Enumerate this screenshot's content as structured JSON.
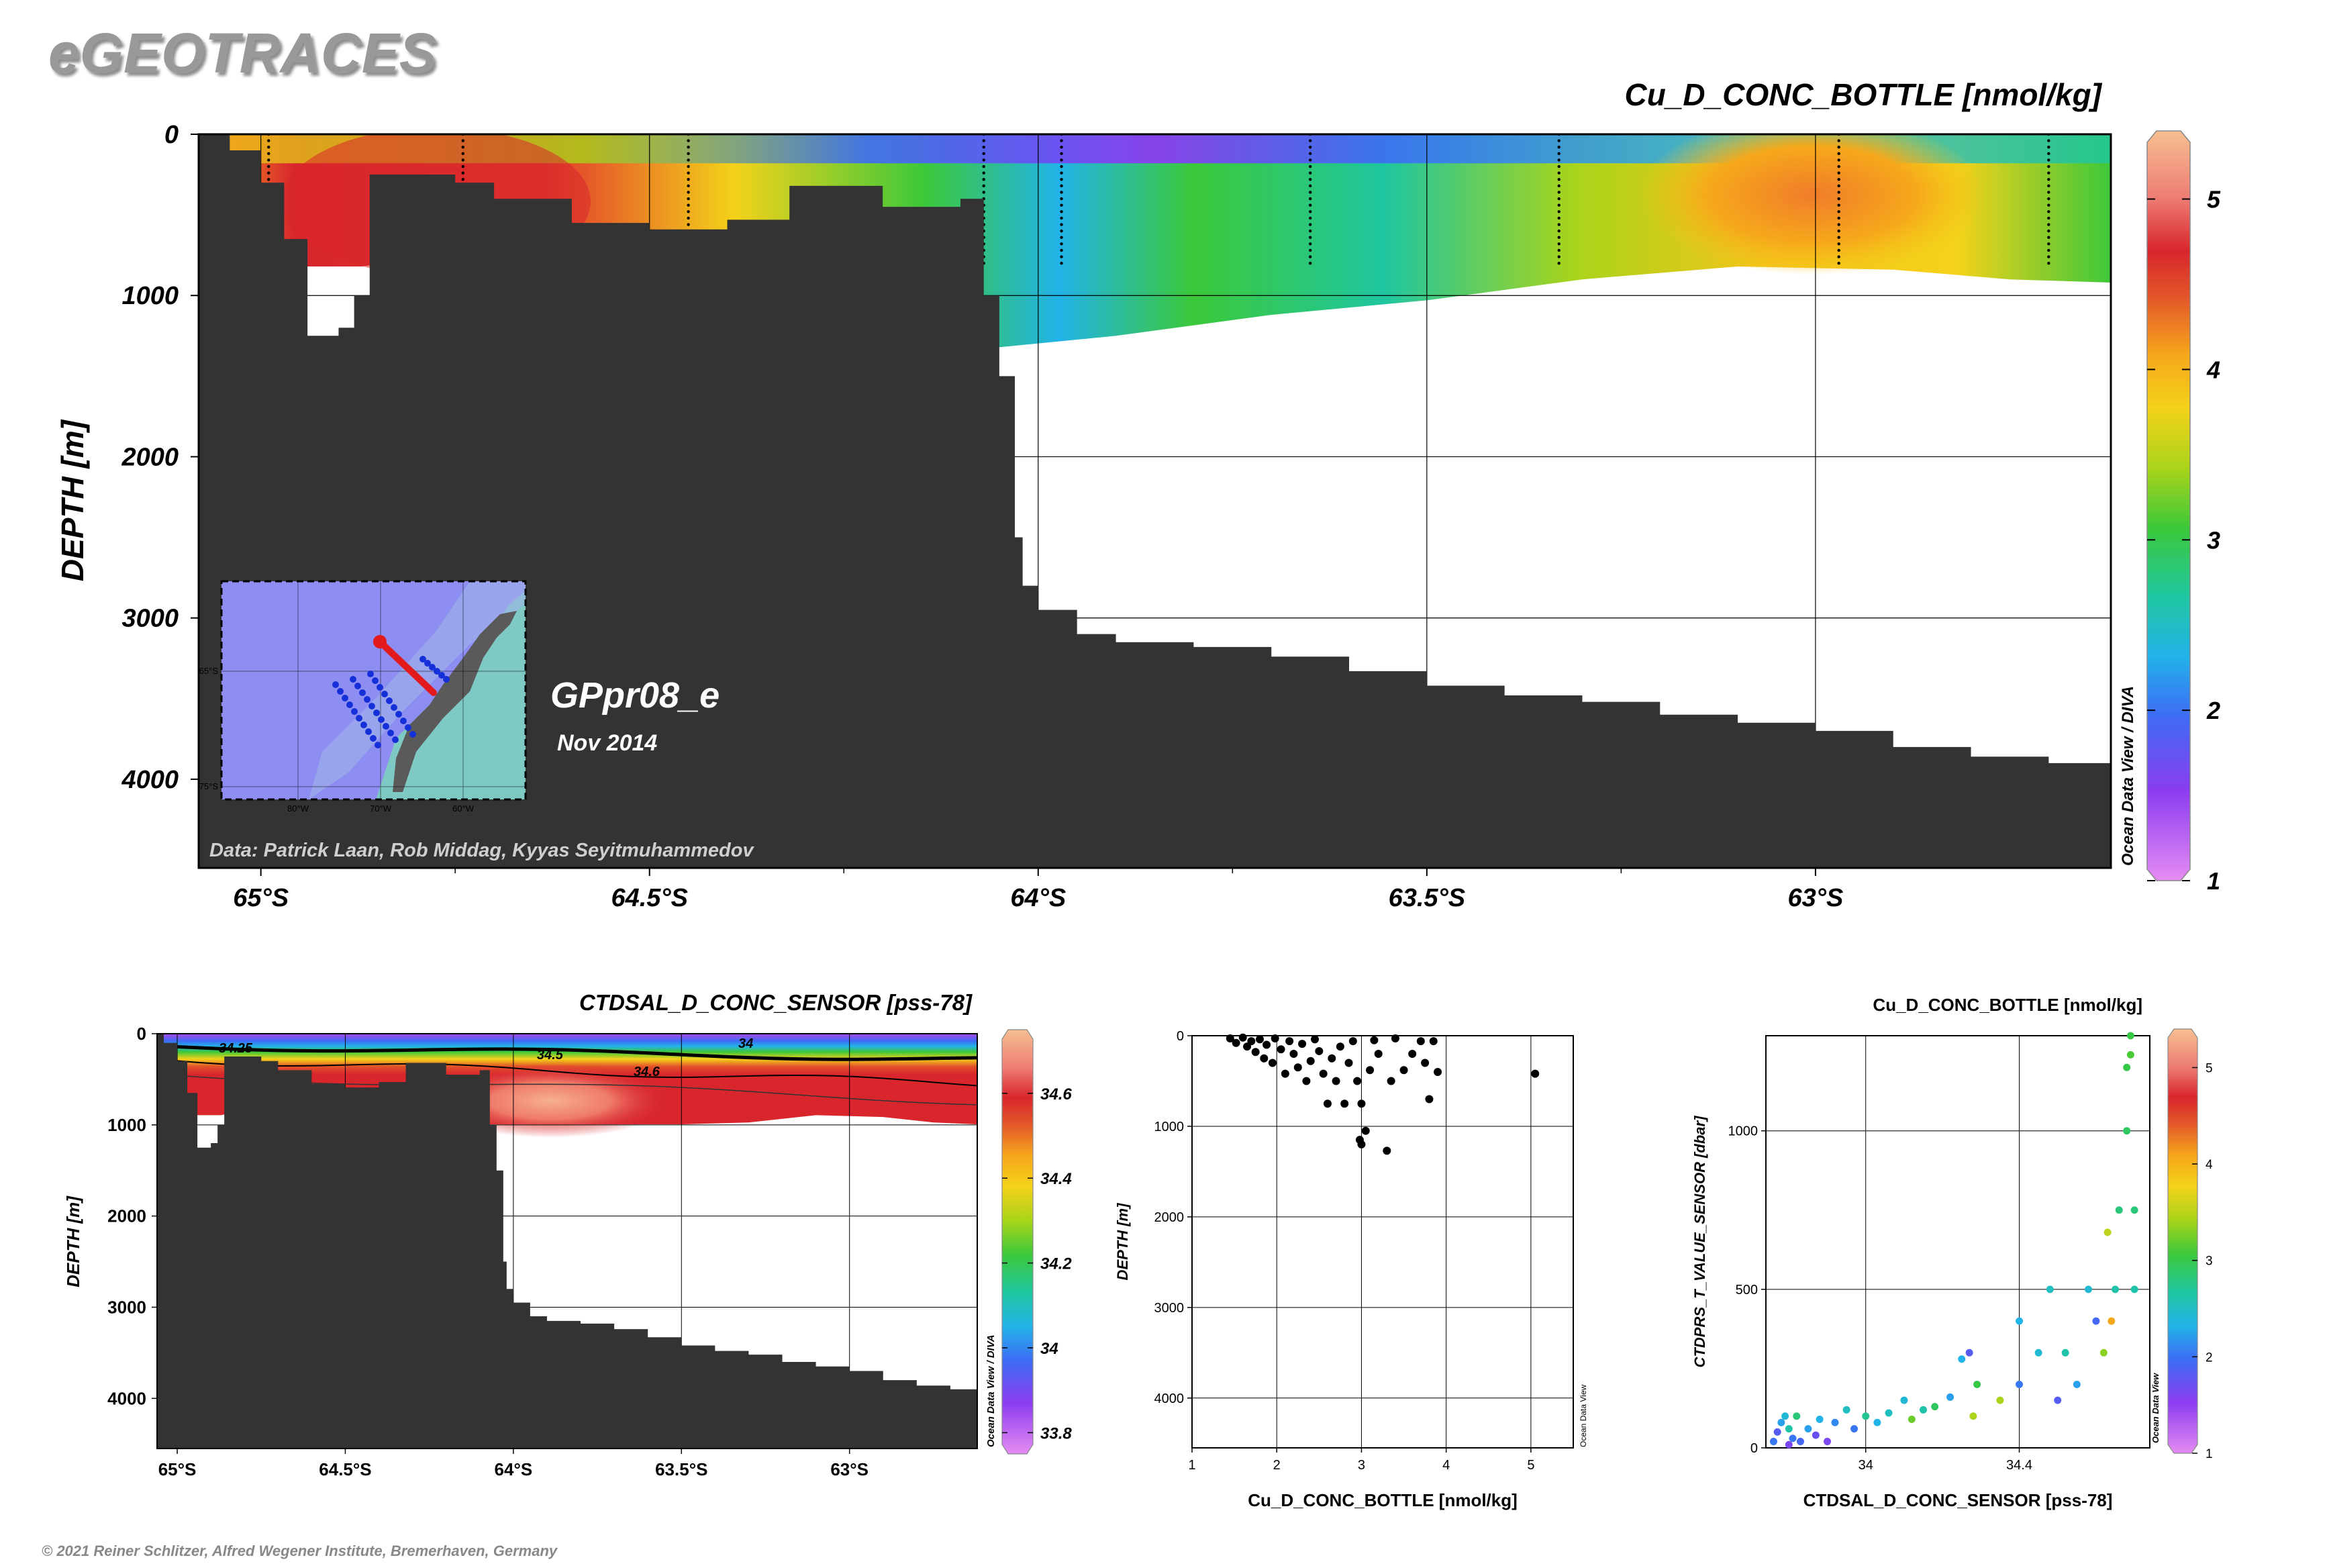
{
  "header": {
    "logo": "eGEOTRACES",
    "copyright": "© 2021 Reiner Schlitzer, Alfred Wegener Institute, Bremerhaven, Germany"
  },
  "chart_data": [
    {
      "id": "main-section",
      "type": "heatmap",
      "title": "Cu_D_CONC_BOTTLE [nmol/kg]",
      "ylabel": "DEPTH [m]",
      "xlabel": "",
      "x_ticks": [
        "65°S",
        "64.5°S",
        "64°S",
        "63.5°S",
        "63°S"
      ],
      "x_tick_values": [
        -65,
        -64.5,
        -64,
        -63.5,
        -63
      ],
      "xlim": [
        -65.08,
        -62.62
      ],
      "y_ticks": [
        "0",
        "1000",
        "2000",
        "3000",
        "4000"
      ],
      "ylim": [
        0,
        4550
      ],
      "colorbar": {
        "ticks": [
          "1",
          "2",
          "3",
          "4",
          "5"
        ],
        "range": [
          1,
          5.4
        ],
        "caption": "Ocean Data View / DIVA"
      },
      "credit": "Data: Patrick Laan, Rob Middag, Kyyas Seyitmuhammedov",
      "section_name": "GPpr08_e",
      "date": "Nov 2014",
      "inset_map": {
        "lon_labels": [
          "80°W",
          "70°W",
          "60°W"
        ],
        "lat_labels": [
          "65°S",
          "75°S"
        ]
      },
      "seafloor_m": [
        [
          -65.08,
          0
        ],
        [
          -65.04,
          100
        ],
        [
          -65.0,
          300
        ],
        [
          -64.97,
          650
        ],
        [
          -64.94,
          1250
        ],
        [
          -64.9,
          1200
        ],
        [
          -64.88,
          1000
        ],
        [
          -64.86,
          250
        ],
        [
          -64.8,
          250
        ],
        [
          -64.75,
          300
        ],
        [
          -64.7,
          400
        ],
        [
          -64.6,
          550
        ],
        [
          -64.5,
          590
        ],
        [
          -64.4,
          530
        ],
        [
          -64.32,
          320
        ],
        [
          -64.2,
          450
        ],
        [
          -64.1,
          400
        ],
        [
          -64.07,
          1000
        ],
        [
          -64.05,
          1500
        ],
        [
          -64.03,
          2500
        ],
        [
          -64.02,
          2800
        ],
        [
          -64.0,
          2950
        ],
        [
          -63.95,
          3100
        ],
        [
          -63.9,
          3150
        ],
        [
          -63.8,
          3180
        ],
        [
          -63.7,
          3240
        ],
        [
          -63.6,
          3330
        ],
        [
          -63.5,
          3420
        ],
        [
          -63.4,
          3480
        ],
        [
          -63.3,
          3520
        ],
        [
          -63.2,
          3600
        ],
        [
          -63.1,
          3650
        ],
        [
          -63.0,
          3700
        ],
        [
          -62.9,
          3800
        ],
        [
          -62.8,
          3860
        ],
        [
          -62.7,
          3900
        ],
        [
          -62.62,
          4060
        ]
      ],
      "data_bottom_m": [
        [
          -64.97,
          820
        ],
        [
          -64.87,
          820
        ],
        [
          -64.6,
          620
        ],
        [
          -64.09,
          1340
        ],
        [
          -63.9,
          1250
        ],
        [
          -63.7,
          1120
        ],
        [
          -63.5,
          1030
        ],
        [
          -63.3,
          900
        ],
        [
          -63.1,
          820
        ],
        [
          -62.9,
          840
        ],
        [
          -62.75,
          900
        ],
        [
          -62.62,
          920
        ]
      ],
      "station_lon": [
        -64.99,
        -64.74,
        -64.45,
        -64.07,
        -63.97,
        -63.65,
        -63.33,
        -62.97,
        -62.7
      ]
    },
    {
      "id": "salinity-section",
      "type": "heatmap",
      "title": "CTDSAL_D_CONC_SENSOR [pss-78]",
      "ylabel": "DEPTH [m]",
      "x_ticks": [
        "65°S",
        "64.5°S",
        "64°S",
        "63.5°S",
        "63°S"
      ],
      "x_tick_values": [
        -65,
        -64.5,
        -64,
        -63.5,
        -63
      ],
      "y_ticks": [
        "0",
        "1000",
        "2000",
        "3000",
        "4000"
      ],
      "colorbar": {
        "ticks": [
          "34.6",
          "34.4",
          "34.2",
          "34",
          "33.8"
        ],
        "range": [
          33.75,
          34.75
        ],
        "caption": "Ocean Data View / DIVA"
      },
      "contour_labels": [
        "34.25",
        "34.5",
        "34.6",
        "34"
      ]
    },
    {
      "id": "cu-depth-scatter",
      "type": "scatter",
      "xlabel": "Cu_D_CONC_BOTTLE [nmol/kg]",
      "ylabel": "DEPTH [m]",
      "x_ticks": [
        "1",
        "2",
        "3",
        "4",
        "5"
      ],
      "xlim": [
        1,
        5.5
      ],
      "y_ticks": [
        "0",
        "1000",
        "2000",
        "3000",
        "4000"
      ],
      "ylim": [
        0,
        4550
      ],
      "caption": "Ocean Data View",
      "points": [
        [
          1.45,
          30
        ],
        [
          1.52,
          80
        ],
        [
          1.6,
          20
        ],
        [
          1.65,
          120
        ],
        [
          1.7,
          60
        ],
        [
          1.75,
          180
        ],
        [
          1.8,
          40
        ],
        [
          1.85,
          250
        ],
        [
          1.88,
          100
        ],
        [
          1.95,
          300
        ],
        [
          1.98,
          30
        ],
        [
          2.05,
          150
        ],
        [
          2.1,
          420
        ],
        [
          2.15,
          60
        ],
        [
          2.2,
          200
        ],
        [
          2.25,
          350
        ],
        [
          2.3,
          90
        ],
        [
          2.35,
          500
        ],
        [
          2.4,
          280
        ],
        [
          2.45,
          40
        ],
        [
          2.5,
          170
        ],
        [
          2.55,
          420
        ],
        [
          2.6,
          750
        ],
        [
          2.65,
          250
        ],
        [
          2.7,
          500
        ],
        [
          2.75,
          120
        ],
        [
          2.8,
          750
        ],
        [
          2.85,
          300
        ],
        [
          2.9,
          60
        ],
        [
          2.95,
          500
        ],
        [
          2.98,
          1150
        ],
        [
          3.0,
          1200
        ],
        [
          3.05,
          1050
        ],
        [
          3.0,
          750
        ],
        [
          3.1,
          380
        ],
        [
          3.15,
          50
        ],
        [
          3.2,
          200
        ],
        [
          3.3,
          1270
        ],
        [
          3.35,
          500
        ],
        [
          3.4,
          30
        ],
        [
          3.5,
          380
        ],
        [
          3.6,
          200
        ],
        [
          3.7,
          60
        ],
        [
          3.75,
          300
        ],
        [
          3.8,
          700
        ],
        [
          3.85,
          60
        ],
        [
          3.9,
          400
        ],
        [
          5.05,
          420
        ]
      ]
    },
    {
      "id": "ts-scatter",
      "type": "scatter",
      "title": "Cu_D_CONC_BOTTLE [nmol/kg]",
      "xlabel": "CTDSAL_D_CONC_SENSOR [pss-78]",
      "ylabel": "CTDPRS_T_VALUE_SENSOR [dbar]",
      "x_ticks": [
        "34",
        "34.4"
      ],
      "x_tick_values": [
        34,
        34.4
      ],
      "xlim": [
        33.74,
        34.74
      ],
      "y_ticks": [
        "0",
        "500",
        "1000"
      ],
      "ylim": [
        0,
        1300
      ],
      "colorbar": {
        "ticks": [
          "5",
          "4",
          "3",
          "2",
          "1"
        ],
        "range": [
          1,
          5.4
        ],
        "caption": "Ocean Data View"
      },
      "points": [
        [
          33.76,
          20,
          2.0
        ],
        [
          33.77,
          50,
          1.8
        ],
        [
          33.78,
          80,
          2.2
        ],
        [
          33.79,
          100,
          2.4
        ],
        [
          33.8,
          10,
          1.6
        ],
        [
          33.8,
          60,
          2.6
        ],
        [
          33.81,
          30,
          2.0
        ],
        [
          33.82,
          100,
          2.8
        ],
        [
          33.83,
          20,
          1.9
        ],
        [
          33.85,
          60,
          2.2
        ],
        [
          33.87,
          40,
          1.7
        ],
        [
          33.88,
          90,
          2.3
        ],
        [
          33.9,
          20,
          1.6
        ],
        [
          33.92,
          80,
          2.1
        ],
        [
          33.95,
          120,
          2.5
        ],
        [
          33.97,
          60,
          2.0
        ],
        [
          34.0,
          100,
          2.7
        ],
        [
          34.03,
          80,
          2.3
        ],
        [
          34.06,
          110,
          2.5
        ],
        [
          34.1,
          150,
          2.4
        ],
        [
          34.12,
          90,
          3.2
        ],
        [
          34.15,
          120,
          2.6
        ],
        [
          34.18,
          130,
          2.9
        ],
        [
          34.22,
          160,
          2.2
        ],
        [
          34.25,
          280,
          2.3
        ],
        [
          34.27,
          300,
          1.8
        ],
        [
          34.28,
          100,
          3.4
        ],
        [
          34.29,
          200,
          3.0
        ],
        [
          34.35,
          150,
          3.4
        ],
        [
          34.4,
          400,
          2.3
        ],
        [
          34.4,
          200,
          2.0
        ],
        [
          34.45,
          300,
          2.4
        ],
        [
          34.48,
          500,
          2.5
        ],
        [
          34.5,
          150,
          1.8
        ],
        [
          34.52,
          300,
          2.6
        ],
        [
          34.55,
          200,
          2.2
        ],
        [
          34.58,
          500,
          2.4
        ],
        [
          34.6,
          400,
          1.9
        ],
        [
          34.62,
          300,
          3.3
        ],
        [
          34.63,
          680,
          3.5
        ],
        [
          34.64,
          400,
          4.1
        ],
        [
          34.65,
          500,
          2.6
        ],
        [
          34.66,
          750,
          2.8
        ],
        [
          34.68,
          1000,
          2.9
        ],
        [
          34.68,
          1200,
          3.0
        ],
        [
          34.69,
          1240,
          3.1
        ],
        [
          34.69,
          1300,
          3.0
        ],
        [
          34.7,
          750,
          2.8
        ],
        [
          34.7,
          500,
          2.6
        ]
      ]
    }
  ]
}
